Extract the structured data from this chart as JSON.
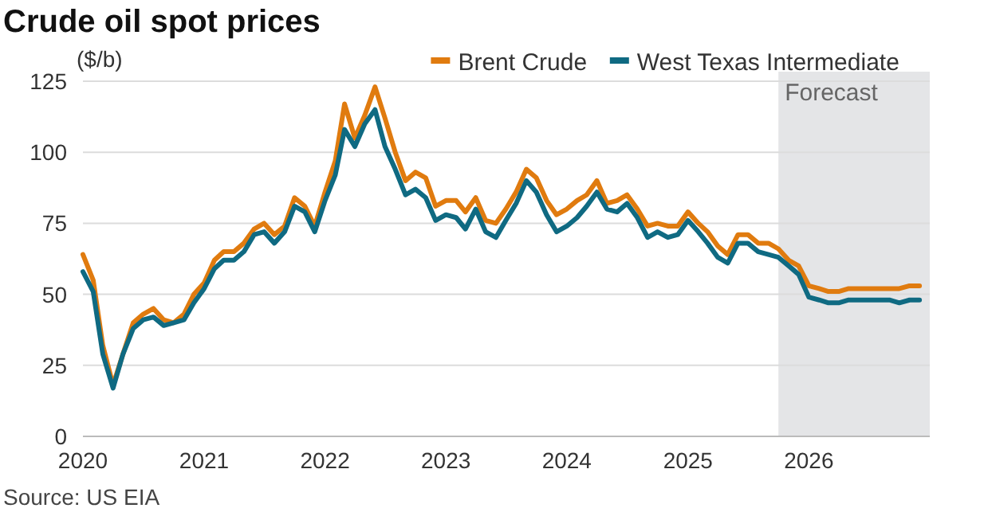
{
  "chart_data": {
    "type": "line",
    "title": "Crude oil spot prices",
    "ylabel": "($/b)",
    "x": [
      "2020-01",
      "2020-02",
      "2020-03",
      "2020-04",
      "2020-05",
      "2020-06",
      "2020-07",
      "2020-08",
      "2020-09",
      "2020-10",
      "2020-11",
      "2020-12",
      "2021-01",
      "2021-02",
      "2021-03",
      "2021-04",
      "2021-05",
      "2021-06",
      "2021-07",
      "2021-08",
      "2021-09",
      "2021-10",
      "2021-11",
      "2021-12",
      "2022-01",
      "2022-02",
      "2022-03",
      "2022-04",
      "2022-05",
      "2022-06",
      "2022-07",
      "2022-08",
      "2022-09",
      "2022-10",
      "2022-11",
      "2022-12",
      "2023-01",
      "2023-02",
      "2023-03",
      "2023-04",
      "2023-05",
      "2023-06",
      "2023-07",
      "2023-08",
      "2023-09",
      "2023-10",
      "2023-11",
      "2023-12",
      "2024-01",
      "2024-02",
      "2024-03",
      "2024-04",
      "2024-05",
      "2024-06",
      "2024-07",
      "2024-08",
      "2024-09",
      "2024-10",
      "2024-11",
      "2024-12",
      "2025-01",
      "2025-02",
      "2025-03",
      "2025-04",
      "2025-05",
      "2025-06",
      "2025-07",
      "2025-08",
      "2025-09",
      "2025-10",
      "2025-11",
      "2025-12",
      "2026-01",
      "2026-02",
      "2026-03",
      "2026-04",
      "2026-05",
      "2026-06",
      "2026-07",
      "2026-08",
      "2026-09",
      "2026-10",
      "2026-11",
      "2026-12"
    ],
    "series": [
      {
        "name": "Brent Crude",
        "color": "#e07b0f",
        "values": [
          64,
          55,
          32,
          18,
          29,
          40,
          43,
          45,
          41,
          40,
          43,
          50,
          54,
          62,
          65,
          65,
          68,
          73,
          75,
          71,
          74,
          84,
          81,
          74,
          86,
          97,
          117,
          105,
          113,
          123,
          112,
          100,
          90,
          93,
          91,
          81,
          83,
          83,
          79,
          84,
          76,
          75,
          80,
          86,
          94,
          91,
          83,
          78,
          80,
          83,
          85,
          90,
          82,
          83,
          85,
          80,
          74,
          75,
          74,
          74,
          79,
          75,
          72,
          67,
          64,
          71,
          71,
          68,
          68,
          66,
          62,
          60,
          53,
          52,
          51,
          51,
          52,
          52,
          52,
          52,
          52,
          52,
          53,
          53
        ]
      },
      {
        "name": "West Texas Intermediate",
        "color": "#0f6a82",
        "values": [
          58,
          51,
          29,
          17,
          29,
          38,
          41,
          42,
          39,
          40,
          41,
          47,
          52,
          59,
          62,
          62,
          65,
          71,
          72,
          68,
          72,
          81,
          79,
          72,
          83,
          92,
          108,
          102,
          110,
          115,
          102,
          94,
          85,
          87,
          84,
          76,
          78,
          77,
          73,
          80,
          72,
          70,
          76,
          82,
          90,
          86,
          78,
          72,
          74,
          77,
          81,
          86,
          80,
          79,
          82,
          77,
          70,
          72,
          70,
          71,
          76,
          72,
          68,
          63,
          61,
          68,
          68,
          65,
          64,
          63,
          60,
          57,
          49,
          48,
          47,
          47,
          48,
          48,
          48,
          48,
          48,
          47,
          48,
          48
        ]
      }
    ],
    "xlim": [
      "2020-01",
      "2027-01"
    ],
    "xticks": [
      {
        "value": "2020",
        "label": "2020"
      },
      {
        "value": "2021",
        "label": "2021"
      },
      {
        "value": "2022",
        "label": "2022"
      },
      {
        "value": "2023",
        "label": "2023"
      },
      {
        "value": "2024",
        "label": "2024"
      },
      {
        "value": "2025",
        "label": "2025"
      },
      {
        "value": "2026",
        "label": "2026"
      }
    ],
    "ylim": [
      0,
      125
    ],
    "yticks": [
      0,
      25,
      50,
      75,
      100,
      125
    ],
    "grid": "y",
    "legend": "top right",
    "bands": [
      {
        "axis": "x",
        "from": "2025-10",
        "to": "2027-01",
        "label": "Forecast",
        "color": "#e4e5e7"
      }
    ],
    "annotations": [
      "Source: US EIA"
    ]
  }
}
